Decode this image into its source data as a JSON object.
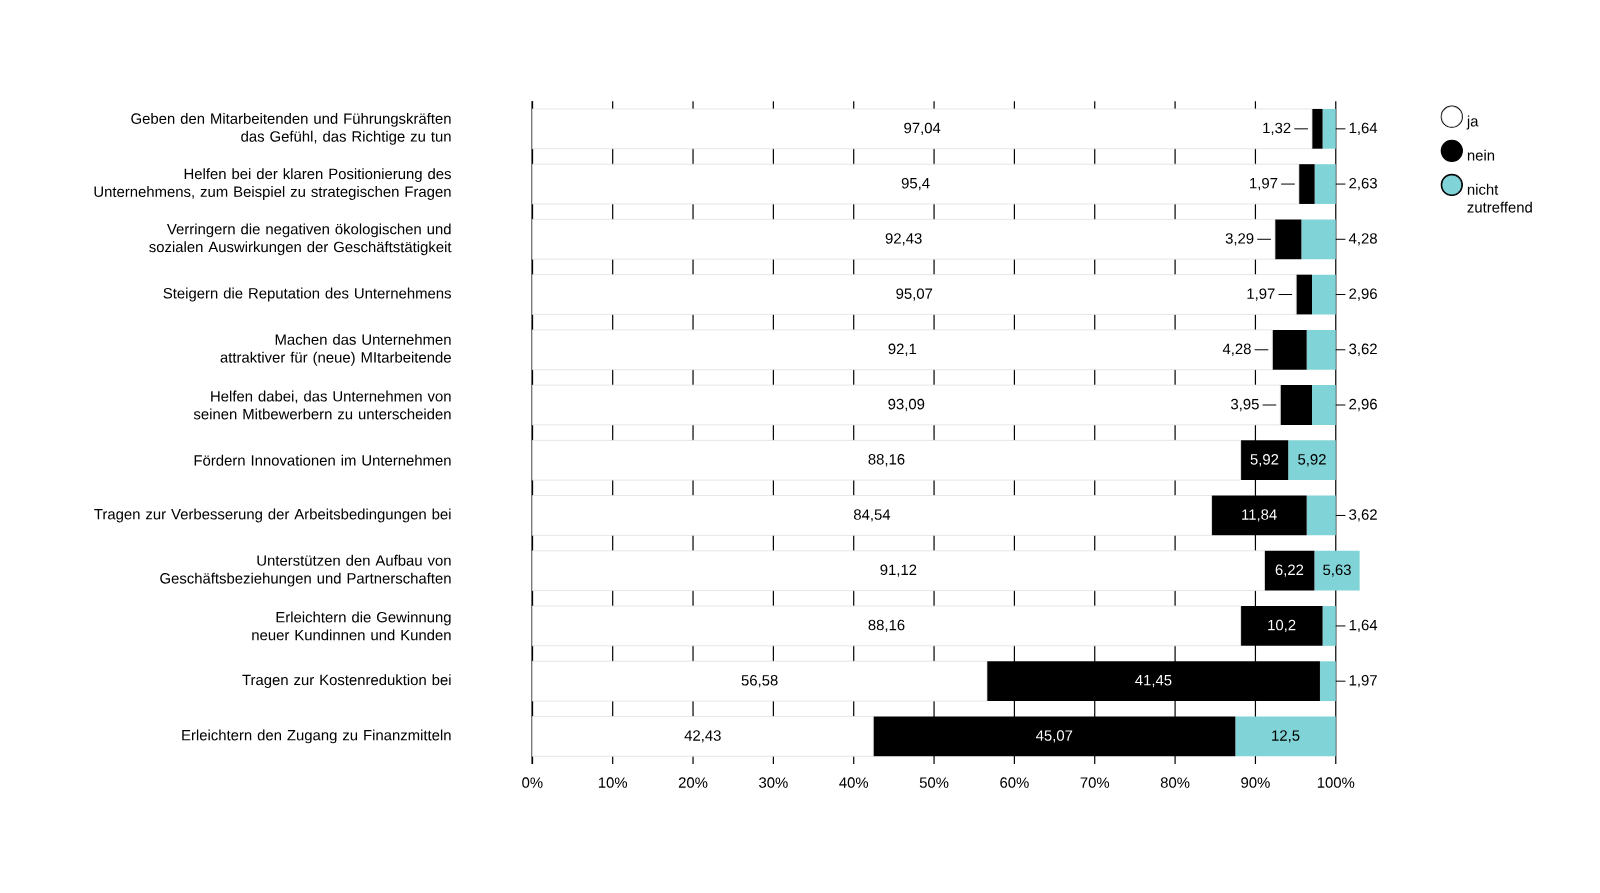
{
  "chart_data": {
    "type": "bar",
    "orientation": "horizontal",
    "stacked": true,
    "categories": [
      "Geben den Mitarbeitenden und Führungskräften das Gefühl, das Richtige zu tun",
      "Helfen bei der klaren Positionierung des Unternehmens, zum Beispiel zu strategischen Fragen",
      "Verringern die negativen ökologischen und sozialen Auswirkungen der Geschäftstätigkeit",
      "Steigern die Reputation des Unternehmens",
      "Machen das Unternehmen attraktiver für (neue) MItarbeitende",
      "Helfen dabei, das Unternehmen von seinen Mitbewerbern zu unterscheiden",
      "Fördern Innovationen im Unternehmen",
      "Tragen zur Verbesserung der Arbeitsbedingungen bei",
      "Unterstützen den Aufbau von Geschäftsbeziehungen und Partnerschaften",
      "Erleichtern die Gewinnung neuer Kundinnen und Kunden",
      "Tragen zur Kostenreduktion bei",
      "Erleichtern den Zugang zu Finanzmitteln"
    ],
    "series": [
      {
        "name": "ja",
        "color": "#ffffff",
        "values": [
          97.04,
          95.4,
          92.43,
          95.07,
          92.1,
          93.09,
          88.16,
          84.54,
          91.12,
          88.16,
          56.58,
          42.43
        ],
        "value_labels": [
          "97,04",
          "95,4",
          "92,43",
          "95,07",
          "92,1",
          "93,09",
          "88,16",
          "84,54",
          "91,12",
          "88,16",
          "56,58",
          "42,43"
        ]
      },
      {
        "name": "nein",
        "color": "#000000",
        "values": [
          1.32,
          1.97,
          3.29,
          1.97,
          4.28,
          3.95,
          5.92,
          11.84,
          6.22,
          10.2,
          41.45,
          45.07
        ],
        "value_labels": [
          "1,32",
          "1,97",
          "3,29",
          "1,97",
          "4,28",
          "3,95",
          "5,92",
          "11,84",
          "6,22",
          "10,2",
          "41,45",
          "45,07"
        ]
      },
      {
        "name": "nicht zutreffend",
        "color": "#80d3d6",
        "values": [
          1.64,
          2.63,
          4.28,
          2.96,
          3.62,
          2.96,
          5.92,
          3.62,
          5.63,
          1.64,
          1.97,
          12.5
        ],
        "value_labels": [
          "1,64",
          "2,63",
          "4,28",
          "2,96",
          "3,62",
          "2,96",
          "5,92",
          "3,62",
          "5,63",
          "1,64",
          "1,97",
          "12,5"
        ]
      }
    ],
    "xlim": [
      0,
      103
    ],
    "xticks": [
      {
        "value": 0,
        "label": "0%"
      },
      {
        "value": 10,
        "label": "10%"
      },
      {
        "value": 20,
        "label": "20%"
      },
      {
        "value": 30,
        "label": "30%"
      },
      {
        "value": 40,
        "label": "40%"
      },
      {
        "value": 50,
        "label": "50%"
      },
      {
        "value": 60,
        "label": "60%"
      },
      {
        "value": 70,
        "label": "70%"
      },
      {
        "value": 80,
        "label": "80%"
      },
      {
        "value": 90,
        "label": "90%"
      },
      {
        "value": 100,
        "label": "100%"
      }
    ],
    "grid": "x",
    "legend": "top right"
  }
}
